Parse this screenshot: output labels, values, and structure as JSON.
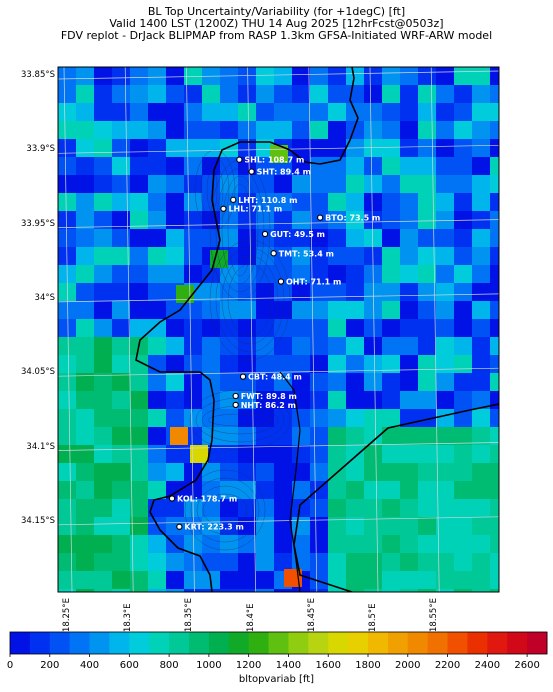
{
  "title": {
    "line1": "BL Top Uncertainty/Variability (for +1degC) [ft]",
    "line2": "Valid 1400 LST (1200Z) THU 14 Aug 2025 [12hrFcst@0503z]",
    "line3": "FDV replot - DrJack BLIPMAP from RASP 1.3km GFSA-Initiated WRF-ARW model"
  },
  "axes": {
    "lat_ticks": [
      "33.85°S",
      "33.9°S",
      "33.95°S",
      "34°S",
      "34.05°S",
      "34.1°S",
      "34.15°S"
    ],
    "lon_ticks": [
      "18.25°E",
      "18.3°E",
      "18.35°E",
      "18.4°E",
      "18.45°E",
      "18.5°E",
      "18.55°E"
    ]
  },
  "colorbar": {
    "label": "bltopvariab [ft]",
    "min": 0,
    "max": 2700,
    "step": 100,
    "tick_labels": [
      "0",
      "200",
      "400",
      "600",
      "800",
      "1000",
      "1200",
      "1400",
      "1600",
      "1800",
      "2000",
      "2200",
      "2400",
      "2600"
    ],
    "colors": [
      "#0012e6",
      "#0030f0",
      "#0052f5",
      "#0074f5",
      "#0094f0",
      "#00b4ec",
      "#00ccdc",
      "#00d2b8",
      "#00c896",
      "#00bb72",
      "#00b050",
      "#10aa28",
      "#30b010",
      "#60c010",
      "#90cc10",
      "#b8d410",
      "#d8d800",
      "#e8d000",
      "#f0b800",
      "#f0a000",
      "#f08800",
      "#f07000",
      "#f05000",
      "#ea3000",
      "#e01810",
      "#d00818",
      "#c00028"
    ]
  },
  "sites": [
    {
      "name": "SHL: 108.7 m",
      "lon": 18.39,
      "lat": -33.907
    },
    {
      "name": "SHT: 89.4 m",
      "lon": 18.4,
      "lat": -33.915
    },
    {
      "name": "LHT: 110.8 m",
      "lon": 18.385,
      "lat": -33.934
    },
    {
      "name": "LHL: 71.1 m",
      "lon": 18.377,
      "lat": -33.94
    },
    {
      "name": "BTO: 73.5 m",
      "lon": 18.456,
      "lat": -33.946
    },
    {
      "name": "GUT: 49.5 m",
      "lon": 18.411,
      "lat": -33.957
    },
    {
      "name": "TMT: 53.4 m",
      "lon": 18.418,
      "lat": -33.97
    },
    {
      "name": "OHT: 71.1 m",
      "lon": 18.424,
      "lat": -33.989
    },
    {
      "name": "CBT: 48.4 m",
      "lon": 18.393,
      "lat": -34.053
    },
    {
      "name": "FWT: 89.8 m",
      "lon": 18.387,
      "lat": -34.066
    },
    {
      "name": "NHT: 86.2 m",
      "lon": 18.387,
      "lat": -34.072
    },
    {
      "name": "KOL: 178.7 m",
      "lon": 18.335,
      "lat": -34.135
    },
    {
      "name": "KRT: 223.3 m",
      "lon": 18.341,
      "lat": -34.154
    }
  ]
}
